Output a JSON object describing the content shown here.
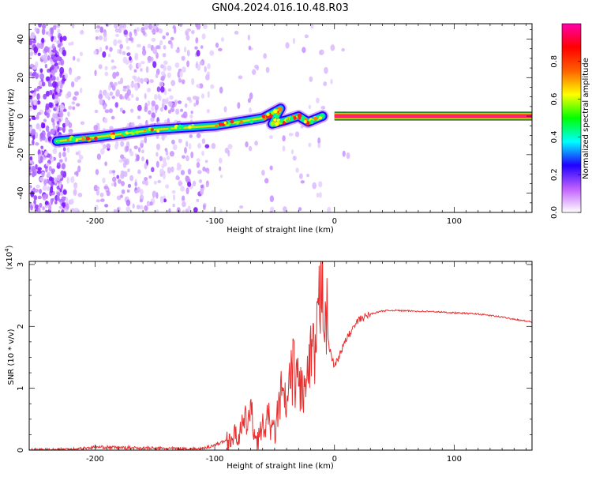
{
  "title": "GN04.2024.016.10.48.R03",
  "charts": [
    {
      "type": "heatmap",
      "xlabel": "Height of straight line (km)",
      "ylabel": "Frequency (Hz)",
      "xlim": [
        -255,
        165
      ],
      "ylim": [
        -50,
        48
      ],
      "xticks": [
        -200,
        -100,
        0,
        100
      ],
      "yticks": [
        -40,
        -20,
        0,
        20,
        40
      ],
      "colorbar": {
        "label": "Normalized spectral amplitude",
        "range": [
          0,
          1
        ],
        "ticks": [
          0.0,
          0.2,
          0.4,
          0.6,
          0.8
        ],
        "colors": [
          "#ffffff",
          "#c060ff",
          "#2000ff",
          "#00ffff",
          "#00ff00",
          "#ffff00",
          "#ff6000",
          "#ff0000",
          "#ff00aa"
        ]
      },
      "ridge": [
        {
          "x": -232,
          "y": -13
        },
        {
          "x": -200,
          "y": -11
        },
        {
          "x": -150,
          "y": -7
        },
        {
          "x": -100,
          "y": -5
        },
        {
          "x": -60,
          "y": -1
        },
        {
          "x": -45,
          "y": 4
        },
        {
          "x": -52,
          "y": -4
        },
        {
          "x": -40,
          "y": -2
        },
        {
          "x": -30,
          "y": 0
        },
        {
          "x": -22,
          "y": -3
        },
        {
          "x": -10,
          "y": 0
        },
        {
          "x": 0,
          "y": 0
        },
        {
          "x": 165,
          "y": 0
        }
      ]
    },
    {
      "type": "line",
      "xlabel": "Height of straight line (km)",
      "ylabel": "SNR (10 * v/v)",
      "yscale_label": "(x10",
      "yscale_exp": "4",
      "yscale_close": ")",
      "xlim": [
        -255,
        165
      ],
      "ylim": [
        0,
        3.05
      ],
      "xticks": [
        -200,
        -100,
        0,
        100
      ],
      "yticks": [
        0,
        1,
        2,
        3
      ],
      "color": "#e83030",
      "series": [
        {
          "x": [
            -255,
            -215,
            -200,
            -150,
            -110,
            -95,
            -80,
            -70,
            -65,
            -60,
            -55,
            -50,
            -45,
            -40,
            -35,
            -30,
            -25,
            -20,
            -15,
            -10,
            -5,
            0,
            10,
            20,
            30,
            40,
            50,
            60,
            80,
            100,
            120,
            140,
            165
          ],
          "y": [
            0.0,
            0.02,
            0.05,
            0.03,
            0.02,
            0.12,
            0.25,
            0.6,
            0.15,
            0.35,
            0.5,
            0.25,
            0.9,
            0.7,
            1.3,
            1.1,
            0.9,
            1.4,
            1.6,
            3.05,
            1.7,
            1.35,
            1.8,
            2.1,
            2.2,
            2.25,
            2.26,
            2.25,
            2.24,
            2.22,
            2.2,
            2.15,
            2.07
          ]
        }
      ]
    }
  ]
}
